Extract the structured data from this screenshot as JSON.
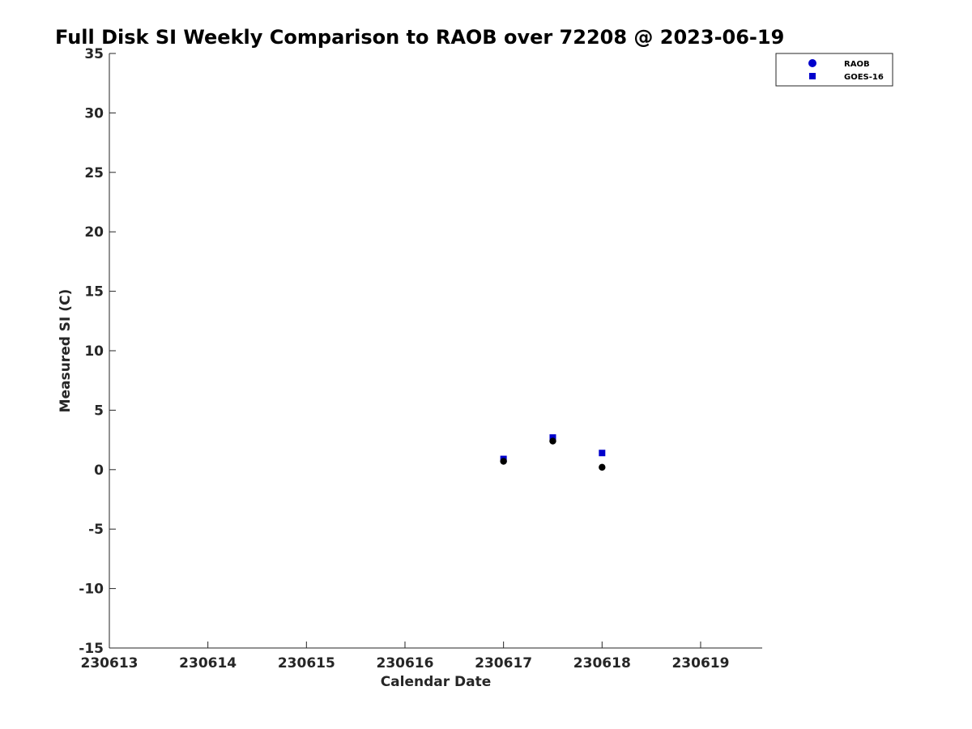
{
  "chart_data": {
    "type": "scatter",
    "title": "Full Disk SI Weekly Comparison to RAOB over 72208 @ 2023-06-19",
    "xlabel": "Calendar Date",
    "ylabel": "Measured SI (C)",
    "xlim": [
      "2023-06-13",
      "2023-06-19T15:00"
    ],
    "ylim": [
      -15,
      35
    ],
    "x_ticks": [
      "2023-06-13",
      "2023-06-14",
      "2023-06-15",
      "2023-06-16",
      "2023-06-17",
      "2023-06-18",
      "2023-06-19"
    ],
    "x_tick_labels": [
      "230613",
      "230614",
      "230615",
      "230616",
      "230617",
      "230618",
      "230619"
    ],
    "y_ticks": [
      -15,
      -10,
      -5,
      0,
      5,
      10,
      15,
      20,
      25,
      30,
      35
    ],
    "grid": false,
    "legend_position": "top-right outside",
    "legend": [
      {
        "label": "RAOB",
        "marker": "circle",
        "color": "#0000cc"
      },
      {
        "label": "GOES-16",
        "marker": "square",
        "color": "#0000cc"
      }
    ],
    "series": [
      {
        "name": "RAOB",
        "marker": "circle",
        "color": "#000000",
        "points": [
          {
            "x": "2023-06-17T00:00",
            "y": 0.7
          },
          {
            "x": "2023-06-17T12:00",
            "y": 2.4
          },
          {
            "x": "2023-06-18T00:00",
            "y": 0.2
          }
        ]
      },
      {
        "name": "GOES-16",
        "marker": "square",
        "color": "#0000cc",
        "points": [
          {
            "x": "2023-06-17T00:00",
            "y": 0.9
          },
          {
            "x": "2023-06-17T12:00",
            "y": 2.7
          },
          {
            "x": "2023-06-18T00:00",
            "y": 1.4
          }
        ]
      }
    ]
  }
}
